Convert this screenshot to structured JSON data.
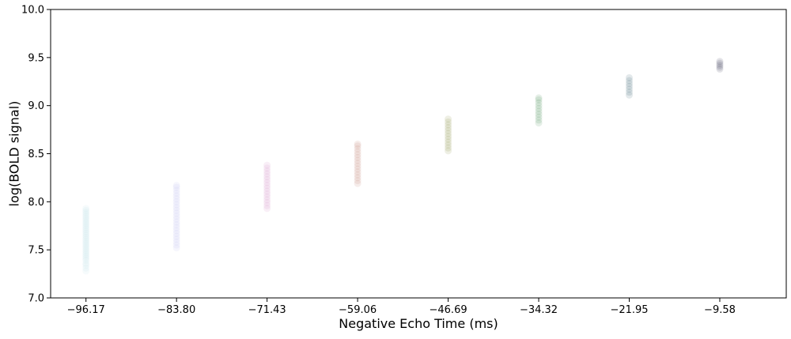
{
  "chart_data": {
    "type": "scatter",
    "title": "",
    "xlabel": "Negative Echo Time (ms)",
    "ylabel": "log(BOLD signal)",
    "xlim": [
      -101.0,
      -0.5
    ],
    "ylim": [
      7.0,
      10.0
    ],
    "grid": false,
    "legend": "none",
    "x_ticks": [
      -96.17,
      -83.8,
      -71.43,
      -59.06,
      -46.69,
      -34.32,
      -21.95,
      -9.58
    ],
    "x_tick_labels": [
      "−96.17",
      "−83.80",
      "−71.43",
      "−59.06",
      "−46.69",
      "−34.32",
      "−21.95",
      "−9.58"
    ],
    "y_ticks": [
      7.0,
      7.5,
      8.0,
      8.5,
      9.0,
      9.5,
      10.0
    ],
    "y_tick_labels": [
      "7.0",
      "7.5",
      "8.0",
      "8.5",
      "9.0",
      "9.5",
      "10.0"
    ],
    "marker_opacity": 0.12,
    "series": [
      {
        "x": -96.17,
        "color": "#b9dde3",
        "y": [
          7.28,
          7.31,
          7.34,
          7.36,
          7.39,
          7.41,
          7.43,
          7.45,
          7.47,
          7.49,
          7.51,
          7.53,
          7.55,
          7.57,
          7.59,
          7.61,
          7.63,
          7.65,
          7.67,
          7.69,
          7.71,
          7.73,
          7.75,
          7.77,
          7.79,
          7.81,
          7.83,
          7.85,
          7.87,
          7.89,
          7.91,
          7.93
        ]
      },
      {
        "x": -83.8,
        "color": "#b6b6ee",
        "y": [
          7.52,
          7.55,
          7.58,
          7.61,
          7.64,
          7.67,
          7.7,
          7.73,
          7.76,
          7.79,
          7.82,
          7.85,
          7.88,
          7.91,
          7.94,
          7.97,
          8.0,
          8.03,
          8.06,
          8.09,
          8.12,
          8.15,
          8.17
        ]
      },
      {
        "x": -71.43,
        "color": "#cc7fc0",
        "y": [
          7.93,
          7.96,
          7.99,
          8.02,
          8.05,
          8.08,
          8.11,
          8.14,
          8.17,
          8.2,
          8.23,
          8.26,
          8.29,
          8.32,
          8.35,
          8.38
        ]
      },
      {
        "x": -59.06,
        "color": "#b5675e",
        "y": [
          8.19,
          8.22,
          8.25,
          8.28,
          8.31,
          8.34,
          8.37,
          8.4,
          8.43,
          8.46,
          8.49,
          8.52,
          8.55,
          8.58,
          8.6
        ]
      },
      {
        "x": -46.69,
        "color": "#707a22",
        "y": [
          8.53,
          8.56,
          8.59,
          8.62,
          8.65,
          8.68,
          8.71,
          8.74,
          8.77,
          8.8,
          8.83,
          8.86
        ]
      },
      {
        "x": -34.32,
        "color": "#287d3a",
        "y": [
          8.82,
          8.85,
          8.88,
          8.91,
          8.94,
          8.97,
          9.0,
          9.03,
          9.06,
          9.08
        ]
      },
      {
        "x": -21.95,
        "color": "#1c4d58",
        "y": [
          9.11,
          9.14,
          9.17,
          9.2,
          9.23,
          9.26,
          9.29
        ]
      },
      {
        "x": -9.58,
        "color": "#1c1836",
        "y": [
          9.38,
          9.4,
          9.42,
          9.44,
          9.46
        ]
      }
    ]
  }
}
